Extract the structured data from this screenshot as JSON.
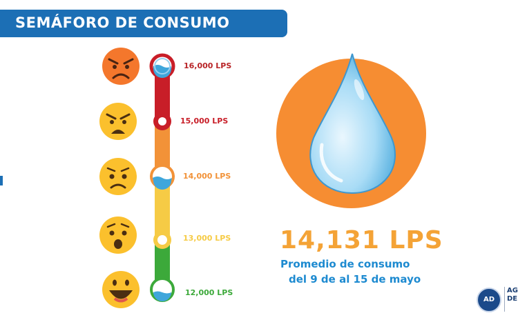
{
  "header": {
    "title": "SEMÁFORO DE CONSUMO"
  },
  "levels": [
    {
      "label": "16,000 LPS",
      "color": "#b82427",
      "emoji": "angry-face-icon",
      "marker": "water-level-high-icon"
    },
    {
      "label": "15,000 LPS",
      "color": "#c81e28",
      "emoji": "furious-face-icon",
      "marker": "ring-marker-icon"
    },
    {
      "label": "14,000 LPS",
      "color": "#f29238",
      "emoji": "worried-face-icon",
      "marker": "water-level-mid-icon"
    },
    {
      "label": "13,000 LPS",
      "color": "#f6cb45",
      "emoji": "surprised-face-icon",
      "marker": "ring-marker-icon"
    },
    {
      "label": "12,000 LPS",
      "color": "#3ca93a",
      "emoji": "happy-face-icon",
      "marker": "water-level-low-icon"
    }
  ],
  "average": {
    "value": "14,131 LPS",
    "line1": "Promedio de consumo",
    "line2": "del 9 de al 15 de mayo",
    "color": "#f4a336",
    "icon": "water-drop-icon"
  },
  "org": {
    "logo_text": "AD",
    "name": "AG DE"
  }
}
